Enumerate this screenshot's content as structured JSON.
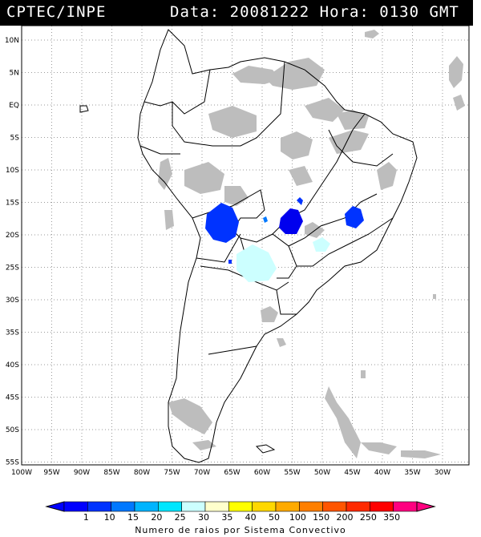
{
  "header": {
    "source": "CPTEC/INPE",
    "date_label": "Data:",
    "date_value": "20081222",
    "hour_label": "Hora:",
    "hour_value": "0130",
    "tz": "GMT"
  },
  "map": {
    "lat_labels": [
      "10N",
      "5N",
      "EQ",
      "5S",
      "10S",
      "15S",
      "20S",
      "25S",
      "30S",
      "35S",
      "40S",
      "45S",
      "50S",
      "55S"
    ],
    "lon_labels": [
      "100W",
      "95W",
      "90W",
      "85W",
      "80W",
      "75W",
      "70W",
      "65W",
      "60W",
      "55W",
      "50W",
      "45W",
      "40W",
      "35W",
      "30W"
    ],
    "colors": {
      "coast": "#000000",
      "grid": "#9a9a9a",
      "cloud": "#bdbdbd"
    }
  },
  "legend": {
    "title": "Numero de raios por Sistema Convectivo",
    "ticks": [
      "1",
      "10",
      "15",
      "20",
      "25",
      "30",
      "35",
      "40",
      "50",
      "100",
      "150",
      "200",
      "250",
      "350"
    ],
    "colors": [
      "#0000ff",
      "#0033ff",
      "#0078ff",
      "#00b4ff",
      "#00e6ff",
      "#ccffff",
      "#ffffcc",
      "#ffff00",
      "#ffd700",
      "#ffaa00",
      "#ff7f00",
      "#ff5500",
      "#ff2a00",
      "#ff0000",
      "#ff0080"
    ]
  }
}
